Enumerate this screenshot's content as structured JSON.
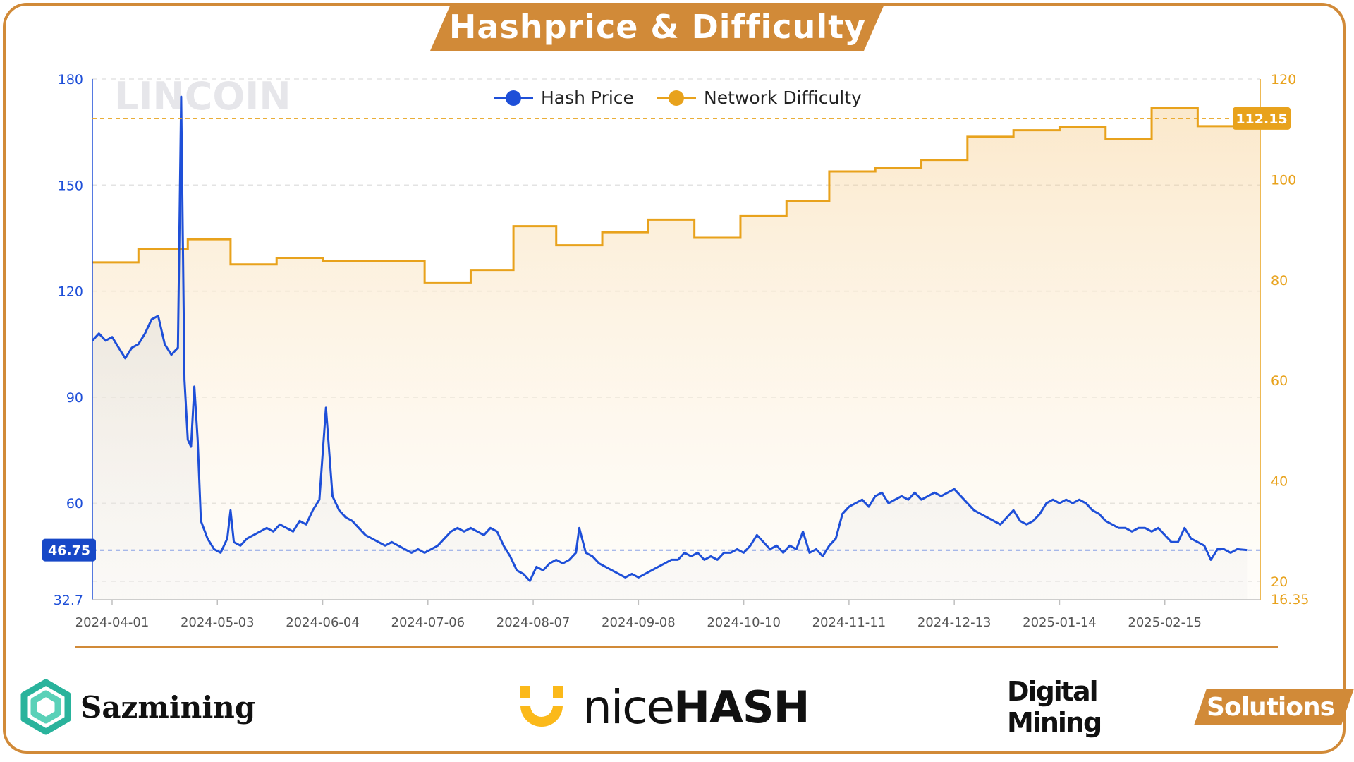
{
  "title": "Hashprice & Difficulty",
  "watermark": "LINCOIN",
  "colors": {
    "hash": "#1e4fd8",
    "diff": "#e8a21c",
    "accent": "#d18a38",
    "grid": "#e3e3e3"
  },
  "chart_data": {
    "type": "line",
    "title": "Hashprice & Difficulty",
    "legend_position": "top-center",
    "grid": true,
    "x_ticks": [
      "2024-04-01",
      "2024-05-03",
      "2024-06-04",
      "2024-07-06",
      "2024-08-07",
      "2024-09-08",
      "2024-10-10",
      "2024-11-11",
      "2024-12-13",
      "2025-01-14",
      "2025-02-15"
    ],
    "x_range": [
      "2024-03-26",
      "2025-03-16"
    ],
    "y_left": {
      "ticks": [
        180,
        150,
        120,
        90,
        60
      ],
      "min": 32.7,
      "max": 180,
      "min_label": "32.7",
      "current_label": "46.75",
      "current": 46.75
    },
    "y_right": {
      "ticks": [
        120,
        100,
        80,
        60,
        40,
        20
      ],
      "min": 16.35,
      "max": 120,
      "min_label": "16.35",
      "current_label": "112.15",
      "current": 112.15
    },
    "series": [
      {
        "name": "Hash Price",
        "axis": "left",
        "points": [
          [
            "2024-03-26",
            106
          ],
          [
            "2024-03-28",
            108
          ],
          [
            "2024-03-30",
            106
          ],
          [
            "2024-04-01",
            107
          ],
          [
            "2024-04-03",
            104
          ],
          [
            "2024-04-05",
            101
          ],
          [
            "2024-04-07",
            104
          ],
          [
            "2024-04-09",
            105
          ],
          [
            "2024-04-11",
            108
          ],
          [
            "2024-04-13",
            112
          ],
          [
            "2024-04-15",
            113
          ],
          [
            "2024-04-17",
            105
          ],
          [
            "2024-04-19",
            102
          ],
          [
            "2024-04-21",
            104
          ],
          [
            "2024-04-22",
            175
          ],
          [
            "2024-04-23",
            95
          ],
          [
            "2024-04-24",
            78
          ],
          [
            "2024-04-25",
            76
          ],
          [
            "2024-04-26",
            93
          ],
          [
            "2024-04-27",
            78
          ],
          [
            "2024-04-28",
            55
          ],
          [
            "2024-04-30",
            50
          ],
          [
            "2024-05-02",
            47
          ],
          [
            "2024-05-04",
            46
          ],
          [
            "2024-05-06",
            50
          ],
          [
            "2024-05-07",
            58
          ],
          [
            "2024-05-08",
            49
          ],
          [
            "2024-05-10",
            48
          ],
          [
            "2024-05-12",
            50
          ],
          [
            "2024-05-14",
            51
          ],
          [
            "2024-05-16",
            52
          ],
          [
            "2024-05-18",
            53
          ],
          [
            "2024-05-20",
            52
          ],
          [
            "2024-05-22",
            54
          ],
          [
            "2024-05-24",
            53
          ],
          [
            "2024-05-26",
            52
          ],
          [
            "2024-05-28",
            55
          ],
          [
            "2024-05-30",
            54
          ],
          [
            "2024-06-01",
            58
          ],
          [
            "2024-06-03",
            61
          ],
          [
            "2024-06-05",
            87
          ],
          [
            "2024-06-07",
            62
          ],
          [
            "2024-06-09",
            58
          ],
          [
            "2024-06-11",
            56
          ],
          [
            "2024-06-13",
            55
          ],
          [
            "2024-06-15",
            53
          ],
          [
            "2024-06-17",
            51
          ],
          [
            "2024-06-19",
            50
          ],
          [
            "2024-06-21",
            49
          ],
          [
            "2024-06-23",
            48
          ],
          [
            "2024-06-25",
            49
          ],
          [
            "2024-06-27",
            48
          ],
          [
            "2024-06-29",
            47
          ],
          [
            "2024-07-01",
            46
          ],
          [
            "2024-07-03",
            47
          ],
          [
            "2024-07-05",
            46
          ],
          [
            "2024-07-07",
            47
          ],
          [
            "2024-07-09",
            48
          ],
          [
            "2024-07-11",
            50
          ],
          [
            "2024-07-13",
            52
          ],
          [
            "2024-07-15",
            53
          ],
          [
            "2024-07-17",
            52
          ],
          [
            "2024-07-19",
            53
          ],
          [
            "2024-07-21",
            52
          ],
          [
            "2024-07-23",
            51
          ],
          [
            "2024-07-25",
            53
          ],
          [
            "2024-07-27",
            52
          ],
          [
            "2024-07-29",
            48
          ],
          [
            "2024-07-31",
            45
          ],
          [
            "2024-08-02",
            41
          ],
          [
            "2024-08-04",
            40
          ],
          [
            "2024-08-06",
            38
          ],
          [
            "2024-08-08",
            42
          ],
          [
            "2024-08-10",
            41
          ],
          [
            "2024-08-12",
            43
          ],
          [
            "2024-08-14",
            44
          ],
          [
            "2024-08-16",
            43
          ],
          [
            "2024-08-18",
            44
          ],
          [
            "2024-08-20",
            46
          ],
          [
            "2024-08-21",
            53
          ],
          [
            "2024-08-23",
            46
          ],
          [
            "2024-08-25",
            45
          ],
          [
            "2024-08-27",
            43
          ],
          [
            "2024-08-29",
            42
          ],
          [
            "2024-08-31",
            41
          ],
          [
            "2024-09-02",
            40
          ],
          [
            "2024-09-04",
            39
          ],
          [
            "2024-09-06",
            40
          ],
          [
            "2024-09-08",
            39
          ],
          [
            "2024-09-10",
            40
          ],
          [
            "2024-09-12",
            41
          ],
          [
            "2024-09-14",
            42
          ],
          [
            "2024-09-16",
            43
          ],
          [
            "2024-09-18",
            44
          ],
          [
            "2024-09-20",
            44
          ],
          [
            "2024-09-22",
            46
          ],
          [
            "2024-09-24",
            45
          ],
          [
            "2024-09-26",
            46
          ],
          [
            "2024-09-28",
            44
          ],
          [
            "2024-09-30",
            45
          ],
          [
            "2024-10-02",
            44
          ],
          [
            "2024-10-04",
            46
          ],
          [
            "2024-10-06",
            46
          ],
          [
            "2024-10-08",
            47
          ],
          [
            "2024-10-10",
            46
          ],
          [
            "2024-10-12",
            48
          ],
          [
            "2024-10-14",
            51
          ],
          [
            "2024-10-16",
            49
          ],
          [
            "2024-10-18",
            47
          ],
          [
            "2024-10-20",
            48
          ],
          [
            "2024-10-22",
            46
          ],
          [
            "2024-10-24",
            48
          ],
          [
            "2024-10-26",
            47
          ],
          [
            "2024-10-28",
            52
          ],
          [
            "2024-10-30",
            46
          ],
          [
            "2024-11-01",
            47
          ],
          [
            "2024-11-03",
            45
          ],
          [
            "2024-11-05",
            48
          ],
          [
            "2024-11-07",
            50
          ],
          [
            "2024-11-09",
            57
          ],
          [
            "2024-11-11",
            59
          ],
          [
            "2024-11-13",
            60
          ],
          [
            "2024-11-15",
            61
          ],
          [
            "2024-11-17",
            59
          ],
          [
            "2024-11-19",
            62
          ],
          [
            "2024-11-21",
            63
          ],
          [
            "2024-11-23",
            60
          ],
          [
            "2024-11-25",
            61
          ],
          [
            "2024-11-27",
            62
          ],
          [
            "2024-11-29",
            61
          ],
          [
            "2024-12-01",
            63
          ],
          [
            "2024-12-03",
            61
          ],
          [
            "2024-12-05",
            62
          ],
          [
            "2024-12-07",
            63
          ],
          [
            "2024-12-09",
            62
          ],
          [
            "2024-12-11",
            63
          ],
          [
            "2024-12-13",
            64
          ],
          [
            "2024-12-15",
            62
          ],
          [
            "2024-12-17",
            60
          ],
          [
            "2024-12-19",
            58
          ],
          [
            "2024-12-21",
            57
          ],
          [
            "2024-12-23",
            56
          ],
          [
            "2024-12-25",
            55
          ],
          [
            "2024-12-27",
            54
          ],
          [
            "2024-12-29",
            56
          ],
          [
            "2024-12-31",
            58
          ],
          [
            "2025-01-02",
            55
          ],
          [
            "2025-01-04",
            54
          ],
          [
            "2025-01-06",
            55
          ],
          [
            "2025-01-08",
            57
          ],
          [
            "2025-01-10",
            60
          ],
          [
            "2025-01-12",
            61
          ],
          [
            "2025-01-14",
            60
          ],
          [
            "2025-01-16",
            61
          ],
          [
            "2025-01-18",
            60
          ],
          [
            "2025-01-20",
            61
          ],
          [
            "2025-01-22",
            60
          ],
          [
            "2025-01-24",
            58
          ],
          [
            "2025-01-26",
            57
          ],
          [
            "2025-01-28",
            55
          ],
          [
            "2025-01-30",
            54
          ],
          [
            "2025-02-01",
            53
          ],
          [
            "2025-02-03",
            53
          ],
          [
            "2025-02-05",
            52
          ],
          [
            "2025-02-07",
            53
          ],
          [
            "2025-02-09",
            53
          ],
          [
            "2025-02-11",
            52
          ],
          [
            "2025-02-13",
            53
          ],
          [
            "2025-02-15",
            51
          ],
          [
            "2025-02-17",
            49
          ],
          [
            "2025-02-19",
            49
          ],
          [
            "2025-02-21",
            53
          ],
          [
            "2025-02-23",
            50
          ],
          [
            "2025-02-25",
            49
          ],
          [
            "2025-02-27",
            48
          ],
          [
            "2025-03-01",
            44
          ],
          [
            "2025-03-03",
            47
          ],
          [
            "2025-03-05",
            47
          ],
          [
            "2025-03-07",
            46
          ],
          [
            "2025-03-09",
            47
          ],
          [
            "2025-03-12",
            46.75
          ]
        ]
      },
      {
        "name": "Network Difficulty",
        "axis": "right",
        "steps": [
          [
            "2024-03-26",
            83.5
          ],
          [
            "2024-04-09",
            86.1
          ],
          [
            "2024-04-24",
            88.1
          ],
          [
            "2024-05-07",
            83.1
          ],
          [
            "2024-05-21",
            84.4
          ],
          [
            "2024-06-04",
            83.7
          ],
          [
            "2024-06-18",
            83.7
          ],
          [
            "2024-07-05",
            79.5
          ],
          [
            "2024-07-19",
            82.0
          ],
          [
            "2024-08-01",
            90.7
          ],
          [
            "2024-08-14",
            86.9
          ],
          [
            "2024-08-28",
            89.5
          ],
          [
            "2024-09-11",
            92.0
          ],
          [
            "2024-09-25",
            88.4
          ],
          [
            "2024-10-09",
            92.7
          ],
          [
            "2024-10-23",
            95.7
          ],
          [
            "2024-11-05",
            101.6
          ],
          [
            "2024-11-19",
            102.3
          ],
          [
            "2024-12-03",
            103.9
          ],
          [
            "2024-12-17",
            108.5
          ],
          [
            "2024-12-31",
            109.8
          ],
          [
            "2025-01-14",
            110.5
          ],
          [
            "2025-01-28",
            108.1
          ],
          [
            "2025-02-11",
            114.2
          ],
          [
            "2025-02-25",
            110.6
          ],
          [
            "2025-03-11",
            112.15
          ],
          [
            "2025-03-16",
            112.15
          ]
        ]
      }
    ]
  },
  "logos": {
    "left": "Sazmining",
    "mid_a": "nice",
    "mid_b": "HASH",
    "right_a": "Digital Mining",
    "right_b": "Solutions"
  }
}
